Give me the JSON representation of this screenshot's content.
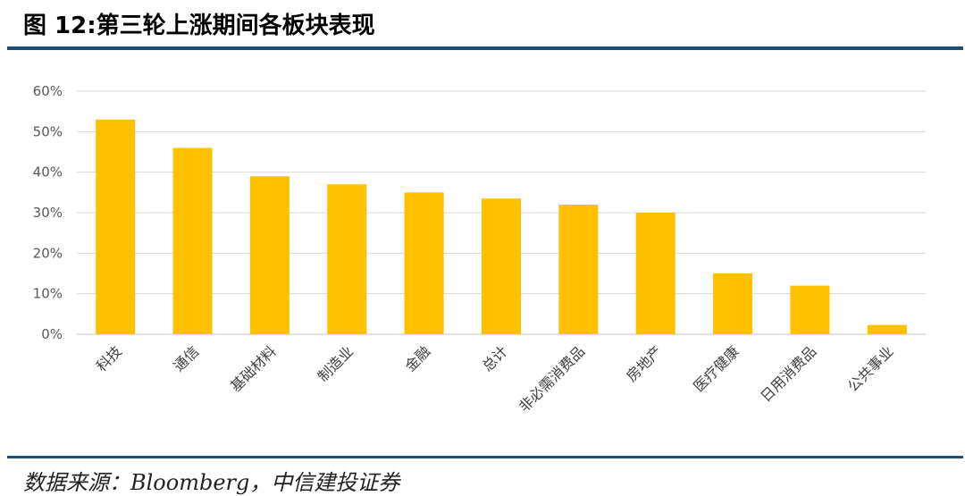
{
  "title": "图 12:第三轮上涨期间各板块表现",
  "source": "数据来源：Bloomberg，中信建投证券",
  "colors": {
    "bar": "#ffc000",
    "rule": "#1f4e79",
    "grid": "#d9d9d9"
  },
  "chart_data": {
    "type": "bar",
    "categories": [
      "科技",
      "通信",
      "基础材料",
      "制造业",
      "金融",
      "总计",
      "非必需消费品",
      "房地产",
      "医疗健康",
      "日用消费品",
      "公共事业"
    ],
    "values": [
      53,
      46,
      39,
      37,
      35,
      33.5,
      32,
      30,
      15,
      12,
      2.3
    ],
    "yticks": [
      "0%",
      "10%",
      "20%",
      "30%",
      "40%",
      "50%",
      "60%"
    ],
    "ylim": [
      0,
      60
    ],
    "grid": true
  }
}
